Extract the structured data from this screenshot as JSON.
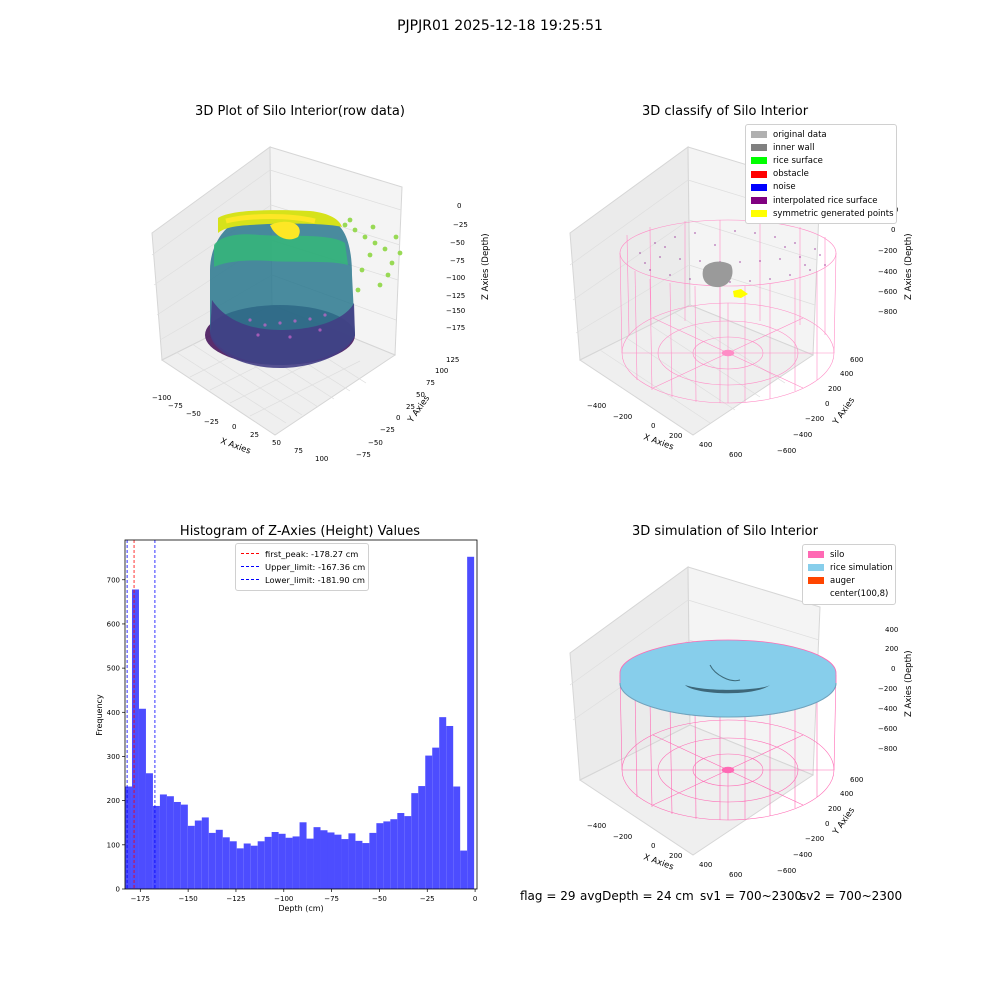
{
  "figure": {
    "suptitle": "PJPJR01 2025-12-18 19:25:51",
    "status_line": {
      "flag": "flag = 29",
      "avg_depth": "avgDepth = 24 cm",
      "sv1": "sv1 = 700~2300",
      "sv2": "sv2 = 700~2300"
    }
  },
  "panels": {
    "raw": {
      "title": "3D Plot of Silo Interior(row data)",
      "xlabel": "X Axies",
      "ylabel": "Y Axies",
      "zlabel": "Z Axies (Depth)",
      "x_ticks": [
        "−100",
        "−75",
        "−50",
        "−25",
        "0",
        "25",
        "50",
        "75",
        "100"
      ],
      "y_ticks": [
        "−75",
        "−50",
        "−25",
        "0",
        "25",
        "50",
        "75",
        "100",
        "125"
      ],
      "z_ticks": [
        "0",
        "−25",
        "−50",
        "−75",
        "−100",
        "−125",
        "−150",
        "−175"
      ]
    },
    "classify": {
      "title": "3D classify of Silo Interior",
      "xlabel": "X Axies",
      "ylabel": "Y Axies",
      "zlabel": "Z Axies (Depth)",
      "x_ticks": [
        "−400",
        "−200",
        "0",
        "200",
        "400",
        "600"
      ],
      "y_ticks": [
        "−600",
        "−400",
        "−200",
        "0",
        "200",
        "400",
        "600"
      ],
      "z_ticks": [
        "200",
        "0",
        "−200",
        "−400",
        "−600",
        "−800"
      ],
      "legend": [
        {
          "label": "original data",
          "color": "#b0b0b0"
        },
        {
          "label": "inner wall",
          "color": "#808080"
        },
        {
          "label": "rice surface",
          "color": "#00ff00"
        },
        {
          "label": "obstacle",
          "color": "#ff0000"
        },
        {
          "label": "noise",
          "color": "#0000ff"
        },
        {
          "label": "interpolated rice surface",
          "color": "#800080"
        },
        {
          "label": "symmetric generated points",
          "color": "#ffff00"
        }
      ]
    },
    "simulation": {
      "title": "3D simulation of Silo Interior",
      "xlabel": "X Axies",
      "ylabel": "Y Axies",
      "zlabel": "Z Axies (Depth)",
      "x_ticks": [
        "−400",
        "−200",
        "0",
        "200",
        "400",
        "600"
      ],
      "y_ticks": [
        "−600",
        "−400",
        "−200",
        "0",
        "200",
        "400",
        "600"
      ],
      "z_ticks": [
        "400",
        "200",
        "0",
        "−200",
        "−400",
        "−600",
        "−800"
      ],
      "legend": [
        {
          "label": "silo",
          "color": "#ff69b4"
        },
        {
          "label": "rice simulation",
          "color": "#87ceeb"
        },
        {
          "label": "auger",
          "color": "#ff4500"
        },
        {
          "label": "center(100,8)",
          "color": "#ffffff"
        }
      ]
    }
  },
  "chart_data": {
    "type": "bar",
    "title": "Histogram of Z-Axies (Height) Values",
    "xlabel": "Depth (cm)",
    "ylabel": "Frequency",
    "xlim": [
      -183,
      1
    ],
    "ylim": [
      0,
      790
    ],
    "x_ticks": [
      -175,
      -150,
      -125,
      -100,
      -75,
      -50,
      -25,
      0
    ],
    "x_tick_labels": [
      "−175",
      "−150",
      "−125",
      "−100",
      "−75",
      "−50",
      "−25",
      "0"
    ],
    "y_ticks": [
      0,
      100,
      200,
      300,
      400,
      500,
      600,
      700
    ],
    "bar_color": "#4d4dff",
    "bin_width": 3.65,
    "bin_start": -183.0,
    "values": [
      232,
      678,
      408,
      262,
      188,
      214,
      210,
      197,
      191,
      143,
      155,
      162,
      127,
      134,
      117,
      108,
      92,
      103,
      98,
      108,
      118,
      129,
      125,
      116,
      119,
      151,
      114,
      140,
      133,
      128,
      123,
      113,
      126,
      109,
      104,
      127,
      149,
      153,
      158,
      172,
      165,
      217,
      233,
      302,
      320,
      389,
      369,
      232,
      87,
      752
    ],
    "vlines": [
      {
        "label": "first_peak: -178.27 cm",
        "x": -178.27,
        "color": "#ff0000"
      },
      {
        "label": "Upper_limit: -167.36 cm",
        "x": -167.36,
        "color": "#0000ff"
      },
      {
        "label": "Lower_limit: -181.90 cm",
        "x": -181.9,
        "color": "#0000ff"
      }
    ],
    "legend_position": "upper center"
  }
}
